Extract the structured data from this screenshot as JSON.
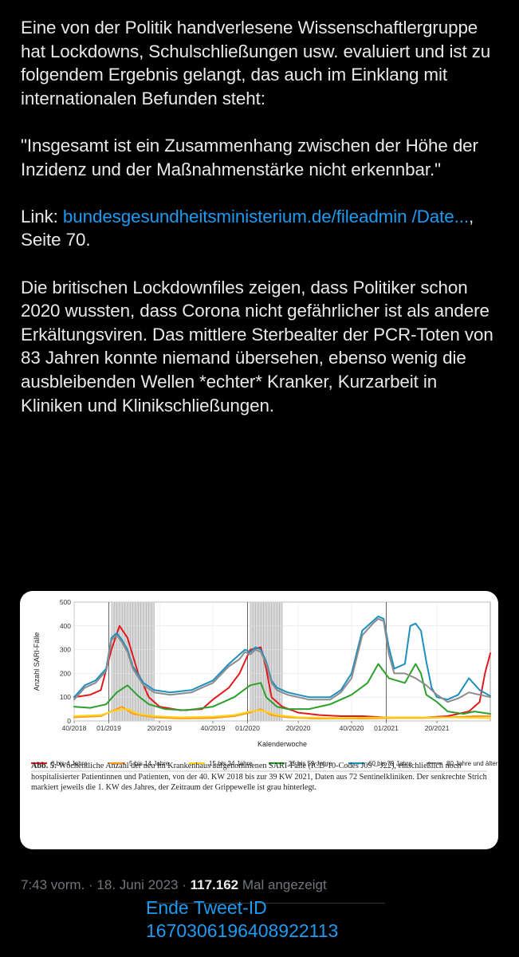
{
  "tweet": {
    "p1": "Eine von der Politik handverlesene Wissenschaftlergruppe hat Lockdowns, Schulschließungen usw. evaluiert und ist zu folgendem Ergebnis gelangt, das auch im Einklang mit internationalen Befunden steht:",
    "p2": "\"Insgesamt ist ein Zusammenhang zwischen der Höhe der Inzidenz und der Maßnahmenstärke nicht erkennbar.\"",
    "link_prefix": "Link: ",
    "link_text_1": "bundesgesundheitsministerium.de/fileadmin",
    "link_text_2": "/Date...",
    "link_suffix": ", Seite 70.",
    "p4": "Die britischen Lockdownfiles zeigen, dass Politiker schon 2020 wussten, dass Corona nicht gefährlicher ist als andere Erkältungsviren. Das mittlere Sterbealter der PCR-Toten von 83 Jahren konnte niemand übersehen, ebenso wenig die ausbleibenden Wellen *echter* Kranker, Kurzarbeit in Kliniken und Klinikschließungen."
  },
  "meta": {
    "time": "7:43 vorm.",
    "separator": " · ",
    "date": "18. Juni 2023",
    "views": "117.162",
    "views_label": " Mal angezeigt"
  },
  "overlay": {
    "line1": "Ende Tweet-ID",
    "line2": "1670306196408922113"
  },
  "chart_data": {
    "type": "line",
    "ylabel": "Anzahl SARI-Fälle",
    "xlabel": "Kalenderwoche",
    "ylim": [
      0,
      500
    ],
    "yticks": [
      "0",
      "100",
      "200",
      "300",
      "400",
      "500"
    ],
    "xlim_weeks": [
      0,
      156
    ],
    "xticks": [
      {
        "label": "40/2018",
        "week": 0
      },
      {
        "label": "01/2019",
        "week": 13
      },
      {
        "label": "20/2019",
        "week": 32
      },
      {
        "label": "40/2019",
        "week": 52
      },
      {
        "label": "01/2020",
        "week": 65
      },
      {
        "label": "20/2020",
        "week": 84
      },
      {
        "label": "40/2020",
        "week": 104
      },
      {
        "label": "01/2021",
        "week": 117
      },
      {
        "label": "20/2021",
        "week": 136
      }
    ],
    "year_markers_week": [
      13,
      65,
      117
    ],
    "flu_waves_week": [
      [
        14,
        30
      ],
      [
        66,
        78
      ]
    ],
    "grid": true,
    "legend_position": "bottom",
    "series": [
      {
        "name": "0 bis 4 Jahre",
        "color": "#e31a1c",
        "x": [
          0,
          6,
          10,
          14,
          17,
          20,
          24,
          28,
          32,
          40,
          48,
          52,
          58,
          62,
          66,
          70,
          72,
          74,
          78,
          84,
          92,
          100,
          108,
          116,
          124,
          132,
          140,
          148,
          152,
          154,
          156
        ],
        "y": [
          100,
          110,
          130,
          300,
          400,
          350,
          200,
          100,
          60,
          45,
          50,
          90,
          140,
          200,
          300,
          310,
          220,
          100,
          60,
          35,
          25,
          20,
          20,
          15,
          15,
          15,
          20,
          40,
          80,
          200,
          285
        ]
      },
      {
        "name": "5 bis 14 Jahre",
        "color": "#ff9a1f",
        "x": [
          0,
          10,
          14,
          18,
          22,
          30,
          40,
          52,
          60,
          66,
          70,
          74,
          80,
          90,
          100,
          110,
          120,
          130,
          140,
          150,
          156
        ],
        "y": [
          15,
          20,
          40,
          60,
          30,
          15,
          10,
          12,
          20,
          35,
          50,
          25,
          15,
          10,
          10,
          10,
          12,
          12,
          15,
          20,
          20
        ]
      },
      {
        "name": "15 bis 34 Jahre",
        "color": "#ffd21a",
        "x": [
          0,
          10,
          16,
          20,
          24,
          30,
          40,
          52,
          60,
          66,
          70,
          76,
          84,
          100,
          120,
          140,
          156
        ],
        "y": [
          20,
          25,
          45,
          50,
          30,
          20,
          15,
          18,
          25,
          40,
          45,
          25,
          15,
          12,
          15,
          15,
          12
        ]
      },
      {
        "name": "35 bis 59 Jahre",
        "color": "#2ca02c",
        "x": [
          0,
          6,
          12,
          16,
          20,
          24,
          28,
          34,
          42,
          52,
          60,
          66,
          70,
          72,
          76,
          80,
          88,
          96,
          104,
          110,
          114,
          118,
          124,
          128,
          130,
          132,
          136,
          140,
          146,
          150,
          156
        ],
        "y": [
          60,
          55,
          70,
          120,
          150,
          105,
          70,
          50,
          45,
          60,
          100,
          150,
          160,
          100,
          60,
          50,
          50,
          70,
          110,
          160,
          240,
          180,
          160,
          240,
          200,
          110,
          80,
          40,
          30,
          40,
          30
        ]
      },
      {
        "name": "60 bis 79 Jahre",
        "color": "#1f8fbf",
        "x": [
          0,
          4,
          8,
          12,
          14,
          16,
          18,
          20,
          22,
          26,
          30,
          36,
          44,
          52,
          58,
          62,
          64,
          66,
          68,
          70,
          72,
          74,
          76,
          80,
          88,
          96,
          100,
          104,
          108,
          112,
          114,
          116,
          118,
          120,
          124,
          126,
          128,
          130,
          132,
          134,
          136,
          140,
          144,
          148,
          152,
          156
        ],
        "y": [
          100,
          150,
          170,
          220,
          350,
          370,
          340,
          300,
          230,
          160,
          130,
          120,
          130,
          170,
          240,
          280,
          300,
          290,
          310,
          300,
          250,
          170,
          140,
          120,
          100,
          100,
          130,
          200,
          380,
          420,
          440,
          430,
          310,
          220,
          240,
          400,
          410,
          380,
          250,
          140,
          100,
          90,
          110,
          180,
          130,
          105
        ]
      },
      {
        "name": "80 Jahre und älter",
        "color": "#8c8c8c",
        "x": [
          0,
          4,
          8,
          12,
          14,
          16,
          18,
          20,
          22,
          26,
          30,
          36,
          44,
          52,
          58,
          62,
          64,
          66,
          68,
          70,
          72,
          74,
          76,
          80,
          88,
          96,
          100,
          104,
          108,
          112,
          114,
          116,
          118,
          120,
          124,
          128,
          132,
          136,
          140,
          144,
          148,
          152,
          156
        ],
        "y": [
          90,
          140,
          160,
          210,
          340,
          360,
          330,
          290,
          220,
          150,
          120,
          110,
          120,
          160,
          230,
          260,
          290,
          280,
          300,
          290,
          240,
          160,
          130,
          110,
          90,
          90,
          120,
          180,
          360,
          410,
          430,
          420,
          280,
          200,
          200,
          180,
          150,
          110,
          80,
          95,
          120,
          110,
          100
        ]
      }
    ],
    "caption_label": "Abb. 5:",
    "caption_text": "Wöchentliche Anzahl der neu im Krankenhaus aufgenommenen SARI-Fälle (ICD-10-Codes J09 – J22), einschließlich noch hospitalisierter Patientinnen und Patienten, von der 40. KW 2018 bis zur 39 KW 2021, Daten aus 72 Sentinelkliniken. Der senkrechte Strich markiert jeweils die 1. KW des Jahres, der Zeitraum der Grippewelle ist grau hinterlegt."
  }
}
